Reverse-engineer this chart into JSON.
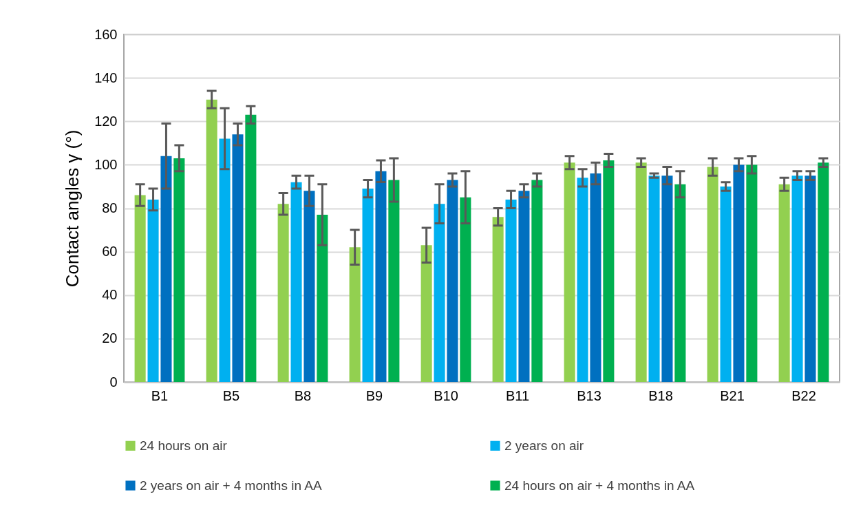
{
  "chart_data": {
    "type": "bar",
    "ylabel": "Contact angles γ (°)",
    "categories": [
      "B1",
      "B5",
      "B8",
      "B9",
      "B10",
      "B11",
      "B13",
      "B18",
      "B21",
      "B22"
    ],
    "series": [
      {
        "name": "24 hours on air",
        "color": "#92d050",
        "values": [
          86,
          130,
          82,
          62,
          63,
          76,
          101,
          101,
          99,
          91
        ],
        "errors": [
          5,
          4,
          5,
          8,
          8,
          4,
          3,
          2,
          4,
          3
        ]
      },
      {
        "name": "2 years on air",
        "color": "#00b0f0",
        "values": [
          84,
          112,
          92,
          89,
          82,
          84,
          94,
          95,
          90,
          95
        ],
        "errors": [
          5,
          14,
          3,
          4,
          9,
          4,
          4,
          1,
          2,
          2
        ]
      },
      {
        "name": "2 years on air + 4 months in AA",
        "color": "#0070c0",
        "values": [
          104,
          114,
          88,
          97,
          93,
          88,
          96,
          95,
          100,
          95
        ],
        "errors": [
          15,
          5,
          7,
          5,
          3,
          3,
          5,
          4,
          3,
          2
        ]
      },
      {
        "name": "24 hours on air + 4 months in AA",
        "color": "#00b050",
        "values": [
          103,
          123,
          77,
          93,
          85,
          93,
          102,
          91,
          100,
          101
        ],
        "errors": [
          6,
          4,
          14,
          10,
          12,
          3,
          3,
          6,
          4,
          2
        ]
      }
    ],
    "ylim": [
      0,
      160
    ],
    "yticks": [
      0,
      20,
      40,
      60,
      80,
      100,
      120,
      140,
      160
    ],
    "grid": "y",
    "legend": "bottom"
  }
}
